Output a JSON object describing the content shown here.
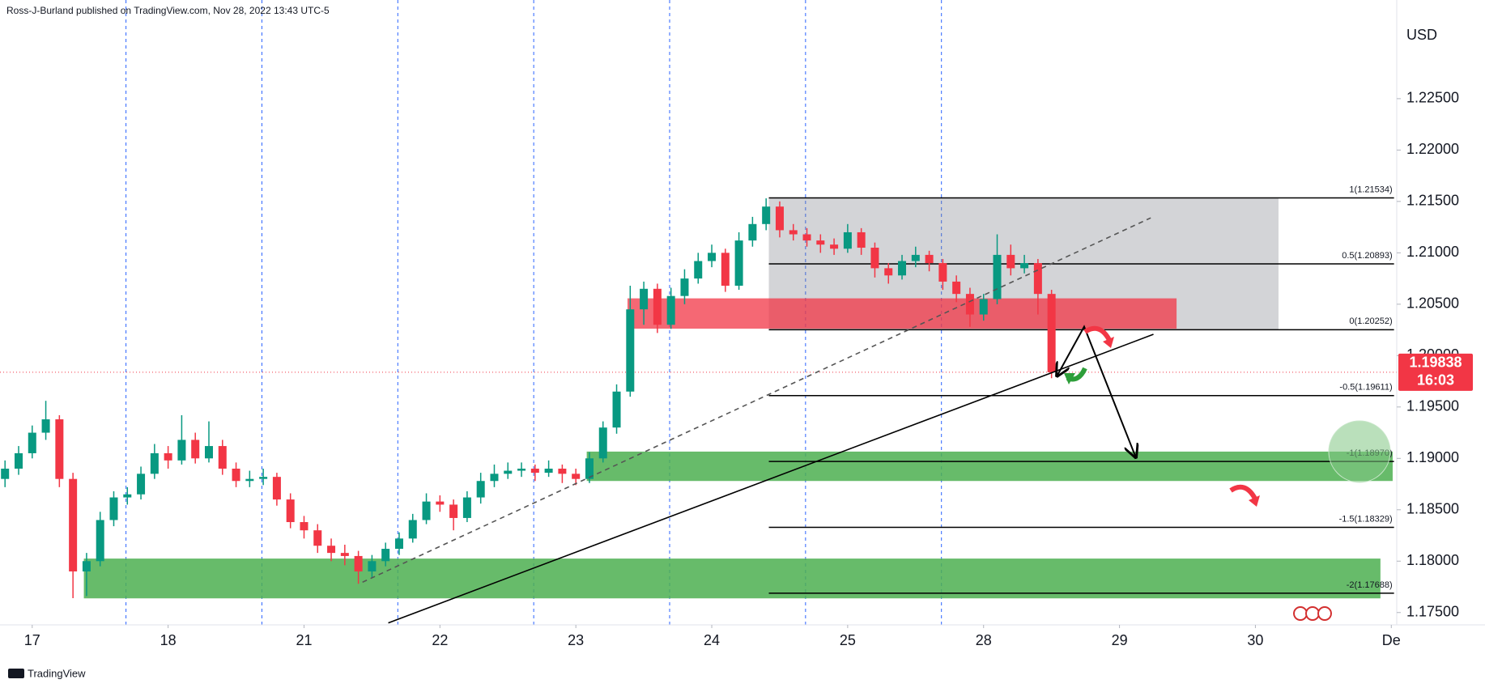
{
  "chart_data": {
    "type": "candlestick",
    "header": "Ross-J-Burland published on TradingView.com, Nov 28, 2022 13:43 UTC-5",
    "currency": "USD",
    "footer": "TradingView",
    "xlim": [
      -0.237,
      10.04
    ],
    "ylim": [
      1.1738,
      1.2346
    ],
    "xticks": [
      {
        "value": 0,
        "label": "17"
      },
      {
        "value": 1,
        "label": "18"
      },
      {
        "value": 2,
        "label": "21"
      },
      {
        "value": 3,
        "label": "22"
      },
      {
        "value": 4,
        "label": "23"
      },
      {
        "value": 5,
        "label": "24"
      },
      {
        "value": 6,
        "label": "25"
      },
      {
        "value": 7,
        "label": "28"
      },
      {
        "value": 8,
        "label": "29"
      },
      {
        "value": 9,
        "label": "30"
      },
      {
        "value": 10,
        "label": "De"
      }
    ],
    "yticks": [
      {
        "value": 1.175,
        "label": "1.17500"
      },
      {
        "value": 1.18,
        "label": "1.18000"
      },
      {
        "value": 1.185,
        "label": "1.18500"
      },
      {
        "value": 1.19,
        "label": "1.19000"
      },
      {
        "value": 1.195,
        "label": "1.19500"
      },
      {
        "value": 1.2,
        "label": "1.20000"
      },
      {
        "value": 1.205,
        "label": "1.20500"
      },
      {
        "value": 1.21,
        "label": "1.21000"
      },
      {
        "value": 1.215,
        "label": "1.21500"
      },
      {
        "value": 1.22,
        "label": "1.22000"
      },
      {
        "value": 1.225,
        "label": "1.22500"
      }
    ],
    "session_lines": [
      0.69,
      1.69,
      2.69,
      3.69,
      4.69,
      5.69,
      6.69
    ],
    "series": [
      {
        "up_color": "#089981",
        "down_color": "#f23645",
        "x": [
          -0.2,
          -0.1,
          0,
          0.1,
          0.2,
          0.3,
          0.4,
          0.5,
          0.6,
          0.7,
          0.8,
          0.9,
          1,
          1.1,
          1.2,
          1.3,
          1.4,
          1.5,
          1.6,
          1.7,
          1.8,
          1.9,
          2,
          2.1,
          2.2,
          2.3,
          2.4,
          2.5,
          2.6,
          2.7,
          2.8,
          2.9,
          3,
          3.1,
          3.2,
          3.3,
          3.4,
          3.5,
          3.6,
          3.7,
          3.8,
          3.9,
          4,
          4.1,
          4.2,
          4.3,
          4.4,
          4.5,
          4.6,
          4.7,
          4.8,
          4.9,
          5,
          5.1,
          5.2,
          5.3,
          5.4,
          5.5,
          5.6,
          5.7,
          5.8,
          5.9,
          6,
          6.1,
          6.2,
          6.3,
          6.4,
          6.5,
          6.6,
          6.7,
          6.8,
          6.9,
          7,
          7.1,
          7.2,
          7.3,
          7.4,
          7.5
        ],
        "ohlc": [
          [
            1.188,
            1.1898,
            1.1872,
            1.189
          ],
          [
            1.189,
            1.1912,
            1.1884,
            1.1905
          ],
          [
            1.1905,
            1.1932,
            1.19,
            1.1925
          ],
          [
            1.1925,
            1.1956,
            1.1918,
            1.1938
          ],
          [
            1.1938,
            1.1942,
            1.1872,
            1.188
          ],
          [
            1.188,
            1.1886,
            1.1764,
            1.179
          ],
          [
            1.179,
            1.1808,
            1.1766,
            1.18
          ],
          [
            1.18,
            1.1848,
            1.1795,
            1.184
          ],
          [
            1.184,
            1.1868,
            1.1834,
            1.1862
          ],
          [
            1.1862,
            1.1872,
            1.1855,
            1.1865
          ],
          [
            1.1865,
            1.1892,
            1.186,
            1.1885
          ],
          [
            1.1885,
            1.1914,
            1.188,
            1.1905
          ],
          [
            1.1905,
            1.1912,
            1.189,
            1.1898
          ],
          [
            1.1898,
            1.1942,
            1.1894,
            1.1918
          ],
          [
            1.1918,
            1.1925,
            1.1895,
            1.19
          ],
          [
            1.19,
            1.1936,
            1.1896,
            1.1912
          ],
          [
            1.1912,
            1.1918,
            1.1884,
            1.189
          ],
          [
            1.189,
            1.1896,
            1.1872,
            1.1878
          ],
          [
            1.1878,
            1.1888,
            1.1872,
            1.188
          ],
          [
            1.188,
            1.189,
            1.1874,
            1.1882
          ],
          [
            1.1882,
            1.1886,
            1.1854,
            1.186
          ],
          [
            1.186,
            1.1866,
            1.1832,
            1.1838
          ],
          [
            1.1838,
            1.1844,
            1.1822,
            1.183
          ],
          [
            1.183,
            1.1836,
            1.1808,
            1.1815
          ],
          [
            1.1815,
            1.1822,
            1.18,
            1.1808
          ],
          [
            1.1808,
            1.1816,
            1.1796,
            1.1805
          ],
          [
            1.1805,
            1.181,
            1.1778,
            1.179
          ],
          [
            1.179,
            1.1806,
            1.1784,
            1.18
          ],
          [
            1.18,
            1.1818,
            1.1795,
            1.1812
          ],
          [
            1.1812,
            1.1828,
            1.1806,
            1.1822
          ],
          [
            1.1822,
            1.1846,
            1.1818,
            1.184
          ],
          [
            1.184,
            1.1866,
            1.1836,
            1.1858
          ],
          [
            1.1858,
            1.1864,
            1.1848,
            1.1855
          ],
          [
            1.1855,
            1.186,
            1.183,
            1.1842
          ],
          [
            1.1842,
            1.1868,
            1.1838,
            1.1862
          ],
          [
            1.1862,
            1.1886,
            1.1856,
            1.1878
          ],
          [
            1.1878,
            1.1894,
            1.1872,
            1.1885
          ],
          [
            1.1885,
            1.1896,
            1.188,
            1.1888
          ],
          [
            1.1888,
            1.1896,
            1.1882,
            1.189
          ],
          [
            1.189,
            1.1894,
            1.1878,
            1.1886
          ],
          [
            1.1886,
            1.1898,
            1.1882,
            1.189
          ],
          [
            1.189,
            1.1894,
            1.1876,
            1.1885
          ],
          [
            1.1885,
            1.189,
            1.1874,
            1.188
          ],
          [
            1.188,
            1.1906,
            1.1876,
            1.19
          ],
          [
            1.19,
            1.1936,
            1.1896,
            1.193
          ],
          [
            1.193,
            1.1972,
            1.1924,
            1.1965
          ],
          [
            1.1965,
            1.2068,
            1.196,
            1.2045
          ],
          [
            1.2045,
            1.2072,
            1.203,
            1.2065
          ],
          [
            1.2065,
            1.207,
            1.2022,
            1.203
          ],
          [
            1.203,
            1.2066,
            1.2026,
            1.2058
          ],
          [
            1.2058,
            1.2084,
            1.205,
            1.2075
          ],
          [
            1.2075,
            1.21,
            1.207,
            1.2092
          ],
          [
            1.2092,
            1.2108,
            1.2086,
            1.21
          ],
          [
            1.21,
            1.2104,
            1.2062,
            1.2068
          ],
          [
            1.2068,
            1.212,
            1.2064,
            1.2112
          ],
          [
            1.2112,
            1.2135,
            1.2106,
            1.2128
          ],
          [
            1.2128,
            1.2153,
            1.2122,
            1.2145
          ],
          [
            1.2145,
            1.215,
            1.2115,
            1.2122
          ],
          [
            1.2122,
            1.2128,
            1.2112,
            1.2118
          ],
          [
            1.2118,
            1.2124,
            1.2106,
            1.2112
          ],
          [
            1.2112,
            1.2118,
            1.21,
            1.2108
          ],
          [
            1.2108,
            1.2114,
            1.2098,
            1.2104
          ],
          [
            1.2104,
            1.2128,
            1.21,
            1.212
          ],
          [
            1.212,
            1.2124,
            1.2098,
            1.2105
          ],
          [
            1.2105,
            1.211,
            1.2076,
            1.2085
          ],
          [
            1.2085,
            1.209,
            1.207,
            1.2078
          ],
          [
            1.2078,
            1.2098,
            1.2074,
            1.2092
          ],
          [
            1.2092,
            1.2106,
            1.2086,
            1.2098
          ],
          [
            1.2098,
            1.2102,
            1.2082,
            1.209
          ],
          [
            1.209,
            1.2094,
            1.2064,
            1.2072
          ],
          [
            1.2072,
            1.2078,
            1.2052,
            1.206
          ],
          [
            1.206,
            1.2066,
            1.2028,
            1.204
          ],
          [
            1.204,
            1.206,
            1.2034,
            1.2055
          ],
          [
            1.2055,
            1.2118,
            1.205,
            1.2098
          ],
          [
            1.2098,
            1.2108,
            1.2078,
            1.2085
          ],
          [
            1.2085,
            1.2098,
            1.208,
            1.209
          ],
          [
            1.209,
            1.2094,
            1.204,
            1.206
          ],
          [
            1.206,
            1.2064,
            1.1978,
            1.19838
          ]
        ]
      }
    ],
    "current_price": 1.19838,
    "countdown": "16:03",
    "current_price_color": "#f23645",
    "range_box": {
      "x": [
        5.42,
        9.17
      ],
      "y": [
        1.20252,
        1.21534
      ],
      "color": "rgba(120,123,134,0.33)"
    },
    "zones": [
      {
        "x": [
          4.38,
          8.42
        ],
        "y": [
          1.20262,
          1.20557
        ],
        "color": "rgba(242,54,69,0.75)"
      },
      {
        "x": [
          4.08,
          10.01
        ],
        "y": [
          1.1878,
          1.19066
        ],
        "color": "rgba(76,175,80,0.85)"
      },
      {
        "x": [
          0.38,
          9.92
        ],
        "y": [
          1.17638,
          1.18025
        ],
        "color": "rgba(76,175,80,0.85)"
      }
    ],
    "fib": {
      "x": [
        5.42,
        10.02
      ],
      "levels": [
        {
          "value": 1.21534,
          "label": "1(1.21534)"
        },
        {
          "value": 1.20893,
          "label": "0.5(1.20893)"
        },
        {
          "value": 1.20252,
          "label": "0(1.20252)"
        },
        {
          "value": 1.19611,
          "label": "-0.5(1.19611)"
        },
        {
          "value": 1.1897,
          "label": "-1(1.18970)"
        },
        {
          "value": 1.18329,
          "label": "-1.5(1.18329)"
        },
        {
          "value": 1.17688,
          "label": "-2(1.17688)"
        }
      ]
    },
    "trendlines": [
      {
        "x": [
          2.62,
          8.25
        ],
        "y": [
          1.17399,
          1.20207
        ],
        "dashed": false
      },
      {
        "x": [
          2.43,
          8.23
        ],
        "y": [
          1.17795,
          1.2134
        ],
        "dashed": true
      }
    ],
    "projection": {
      "x": [
        7.54,
        7.74,
        8.12
      ],
      "y": [
        1.19802,
        1.20281,
        1.1901
      ]
    }
  }
}
